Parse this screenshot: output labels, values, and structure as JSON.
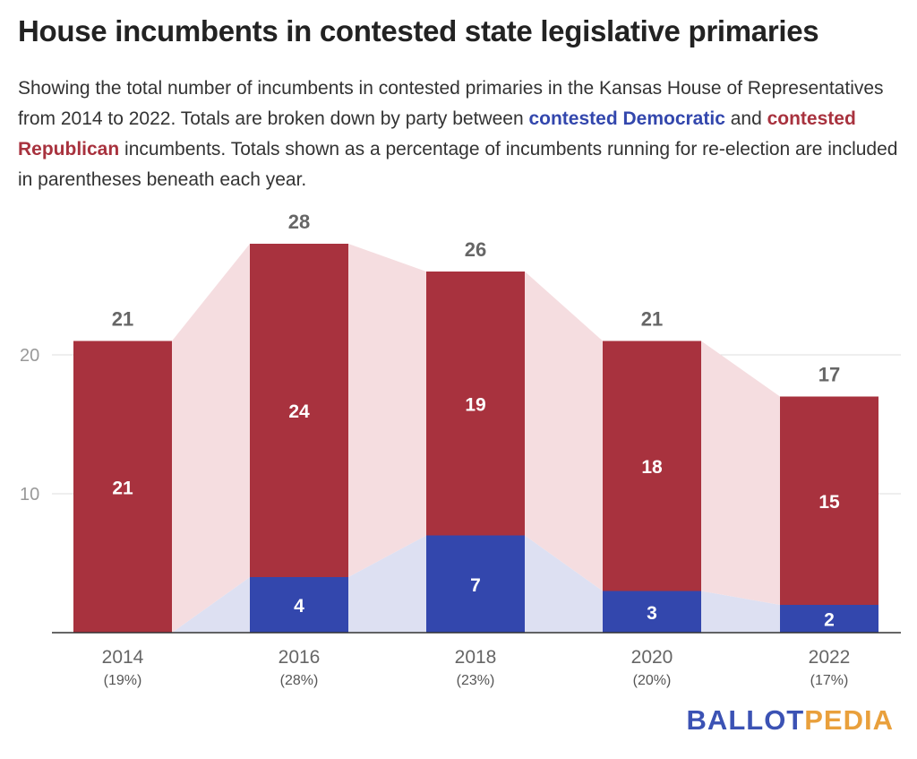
{
  "title": "House incumbents in contested state legislative primaries",
  "description": {
    "part1": "Showing the total number of incumbents in contested primaries in the Kansas House of Representatives from 2014 to 2022. Totals are broken down by party between ",
    "dem_label": "contested Democratic",
    "part2": " and ",
    "rep_label": "contested Republican",
    "part3": " incumbents. Totals shown as a percentage of incumbents running for re-election are included in parentheses beneath each year."
  },
  "colors": {
    "democratic": "#3347ad",
    "republican": "#a8323e",
    "dem_area": "#dde0f2",
    "rep_area": "#f5dde0",
    "grid": "#dddddd",
    "axis": "#333333"
  },
  "chart_data": {
    "type": "bar",
    "stacked": true,
    "categories": [
      "2014",
      "2016",
      "2018",
      "2020",
      "2022"
    ],
    "sublabels": [
      "(19%)",
      "(28%)",
      "(23%)",
      "(20%)",
      "(17%)"
    ],
    "series": [
      {
        "name": "contested Democratic",
        "values": [
          0,
          4,
          7,
          3,
          2
        ]
      },
      {
        "name": "contested Republican",
        "values": [
          21,
          24,
          19,
          18,
          15
        ]
      }
    ],
    "totals": [
      21,
      28,
      26,
      21,
      17
    ],
    "yticks": [
      10,
      20
    ],
    "ylim": [
      0,
      28
    ],
    "grid": true,
    "area_connectors": true
  },
  "logo": {
    "part1": "BALLOT",
    "part2": "PEDIA"
  }
}
